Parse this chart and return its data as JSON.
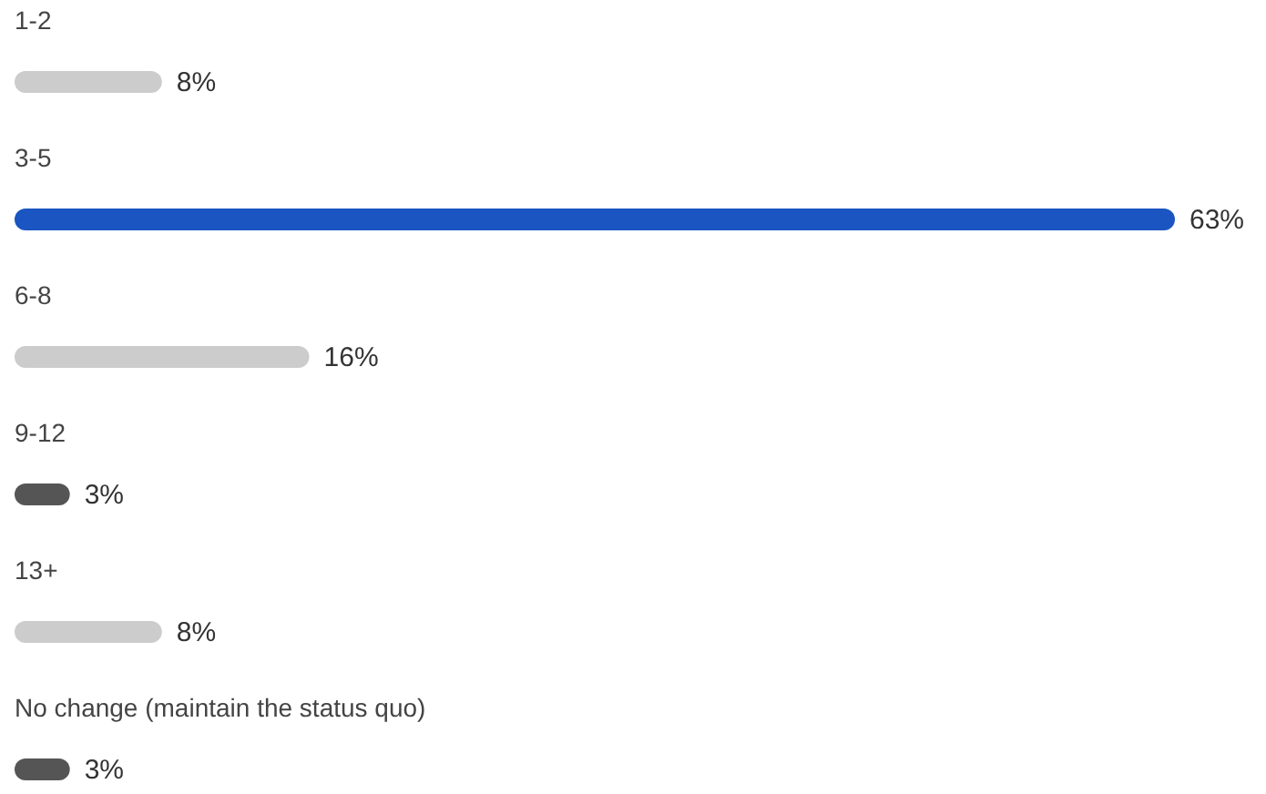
{
  "chart_data": {
    "type": "bar",
    "orientation": "horizontal",
    "categories": [
      "1-2",
      "3-5",
      "6-8",
      "9-12",
      "13+",
      "No change (maintain the status quo)"
    ],
    "values": [
      8,
      63,
      16,
      3,
      8,
      3
    ],
    "value_labels": [
      "8%",
      "63%",
      "16%",
      "3%",
      "8%",
      "3%"
    ],
    "colors": [
      "#cccccc",
      "#1a55c2",
      "#cccccc",
      "#555555",
      "#cccccc",
      "#555555"
    ]
  }
}
